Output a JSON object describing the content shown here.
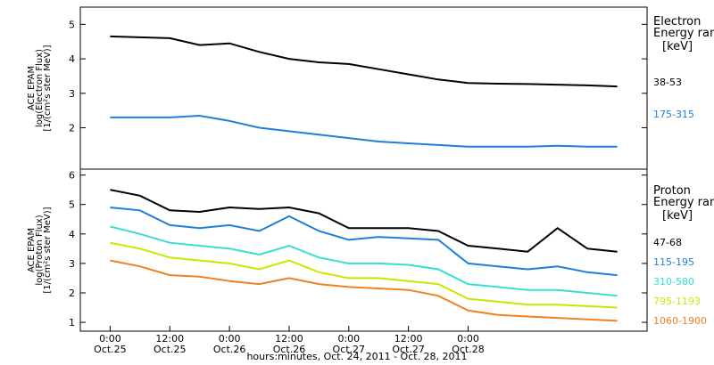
{
  "chart_data": [
    {
      "type": "line",
      "panel": "electron",
      "ylabel": [
        "ACE EPAM",
        "log(Electron Flux)",
        "[1/(cm²s ster MeV)]"
      ],
      "ylim": [
        0.8,
        5.5
      ],
      "yticks": [
        2,
        3,
        4,
        5
      ],
      "legend_title": [
        "Electron",
        "Energy range"
      ],
      "legend_unit": "[keV]",
      "series": [
        {
          "name": "38-53",
          "color": "#000000",
          "x": [
            0,
            12,
            18,
            24,
            30,
            36,
            42,
            48,
            54,
            60,
            66,
            72,
            78,
            84,
            90,
            96,
            102
          ],
          "values": [
            4.65,
            4.6,
            4.4,
            4.45,
            4.2,
            4.0,
            3.9,
            3.85,
            3.7,
            3.55,
            3.4,
            3.3,
            3.28,
            3.27,
            3.25,
            3.23,
            3.2
          ]
        },
        {
          "name": "175-315",
          "color": "#1f7fd8",
          "x": [
            0,
            12,
            18,
            24,
            30,
            36,
            42,
            48,
            54,
            60,
            66,
            72,
            78,
            84,
            90,
            96,
            102
          ],
          "values": [
            2.3,
            2.3,
            2.35,
            2.2,
            2.0,
            1.9,
            1.8,
            1.7,
            1.6,
            1.55,
            1.5,
            1.45,
            1.45,
            1.45,
            1.48,
            1.45,
            1.45
          ]
        }
      ]
    },
    {
      "type": "line",
      "panel": "proton",
      "ylabel": [
        "ACE EPAM",
        "log(Proton Flux)",
        "[1/(cm²s ster MeV)]"
      ],
      "ylim": [
        0.7,
        6.2
      ],
      "yticks": [
        1,
        2,
        3,
        4,
        5,
        6
      ],
      "legend_title": [
        "Proton",
        "Energy range"
      ],
      "legend_unit": "[keV]",
      "series": [
        {
          "name": "47-68",
          "color": "#000000",
          "x": [
            0,
            6,
            12,
            18,
            24,
            30,
            36,
            42,
            48,
            54,
            60,
            66,
            72,
            78,
            84,
            90,
            96,
            102
          ],
          "values": [
            5.5,
            5.3,
            4.8,
            4.75,
            4.9,
            4.85,
            4.9,
            4.7,
            4.2,
            4.2,
            4.2,
            4.1,
            3.6,
            3.5,
            3.4,
            4.2,
            3.5,
            3.4
          ]
        },
        {
          "name": "115-195",
          "color": "#1f7fd8",
          "x": [
            0,
            6,
            12,
            18,
            24,
            30,
            36,
            42,
            48,
            54,
            60,
            66,
            72,
            78,
            84,
            90,
            96,
            102
          ],
          "values": [
            4.9,
            4.8,
            4.3,
            4.2,
            4.3,
            4.1,
            4.6,
            4.1,
            3.8,
            3.9,
            3.85,
            3.8,
            3.0,
            2.9,
            2.8,
            2.9,
            2.7,
            2.6
          ]
        },
        {
          "name": "310-580",
          "color": "#33e0d0",
          "x": [
            0,
            6,
            12,
            18,
            24,
            30,
            36,
            42,
            48,
            54,
            60,
            66,
            72,
            78,
            84,
            90,
            96,
            102
          ],
          "values": [
            4.25,
            4.0,
            3.7,
            3.6,
            3.5,
            3.3,
            3.6,
            3.2,
            3.0,
            3.0,
            2.95,
            2.8,
            2.3,
            2.2,
            2.1,
            2.1,
            2.0,
            1.9
          ]
        },
        {
          "name": "795-1193",
          "color": "#c8e800",
          "x": [
            0,
            6,
            12,
            18,
            24,
            30,
            36,
            42,
            48,
            54,
            60,
            66,
            72,
            78,
            84,
            90,
            96,
            102
          ],
          "values": [
            3.7,
            3.5,
            3.2,
            3.1,
            3.0,
            2.8,
            3.1,
            2.7,
            2.5,
            2.5,
            2.4,
            2.3,
            1.8,
            1.7,
            1.6,
            1.6,
            1.55,
            1.5
          ]
        },
        {
          "name": "1060-1900",
          "color": "#f08020",
          "x": [
            0,
            6,
            12,
            18,
            24,
            30,
            36,
            42,
            48,
            54,
            60,
            66,
            72,
            78,
            84,
            90,
            96,
            102
          ],
          "values": [
            3.1,
            2.9,
            2.6,
            2.55,
            2.4,
            2.3,
            2.5,
            2.3,
            2.2,
            2.15,
            2.1,
            1.9,
            1.4,
            1.25,
            1.2,
            1.15,
            1.1,
            1.05
          ]
        }
      ]
    }
  ],
  "x_axis": {
    "xlim": [
      -6,
      108
    ],
    "ticks": [
      {
        "x": 0,
        "time": "0:00",
        "date": "Oct.25"
      },
      {
        "x": 12,
        "time": "12:00",
        "date": "Oct.25"
      },
      {
        "x": 24,
        "time": "0:00",
        "date": "Oct.26"
      },
      {
        "x": 36,
        "time": "12:00",
        "date": "Oct.26"
      },
      {
        "x": 48,
        "time": "0:00",
        "date": "Oct.27"
      },
      {
        "x": 60,
        "time": "12:00",
        "date": "Oct.27"
      },
      {
        "x": 72,
        "time": "0:00",
        "date": "Oct.28"
      }
    ],
    "label": "hours:minutes, Oct. 24, 2011 - Oct. 28, 2011"
  }
}
